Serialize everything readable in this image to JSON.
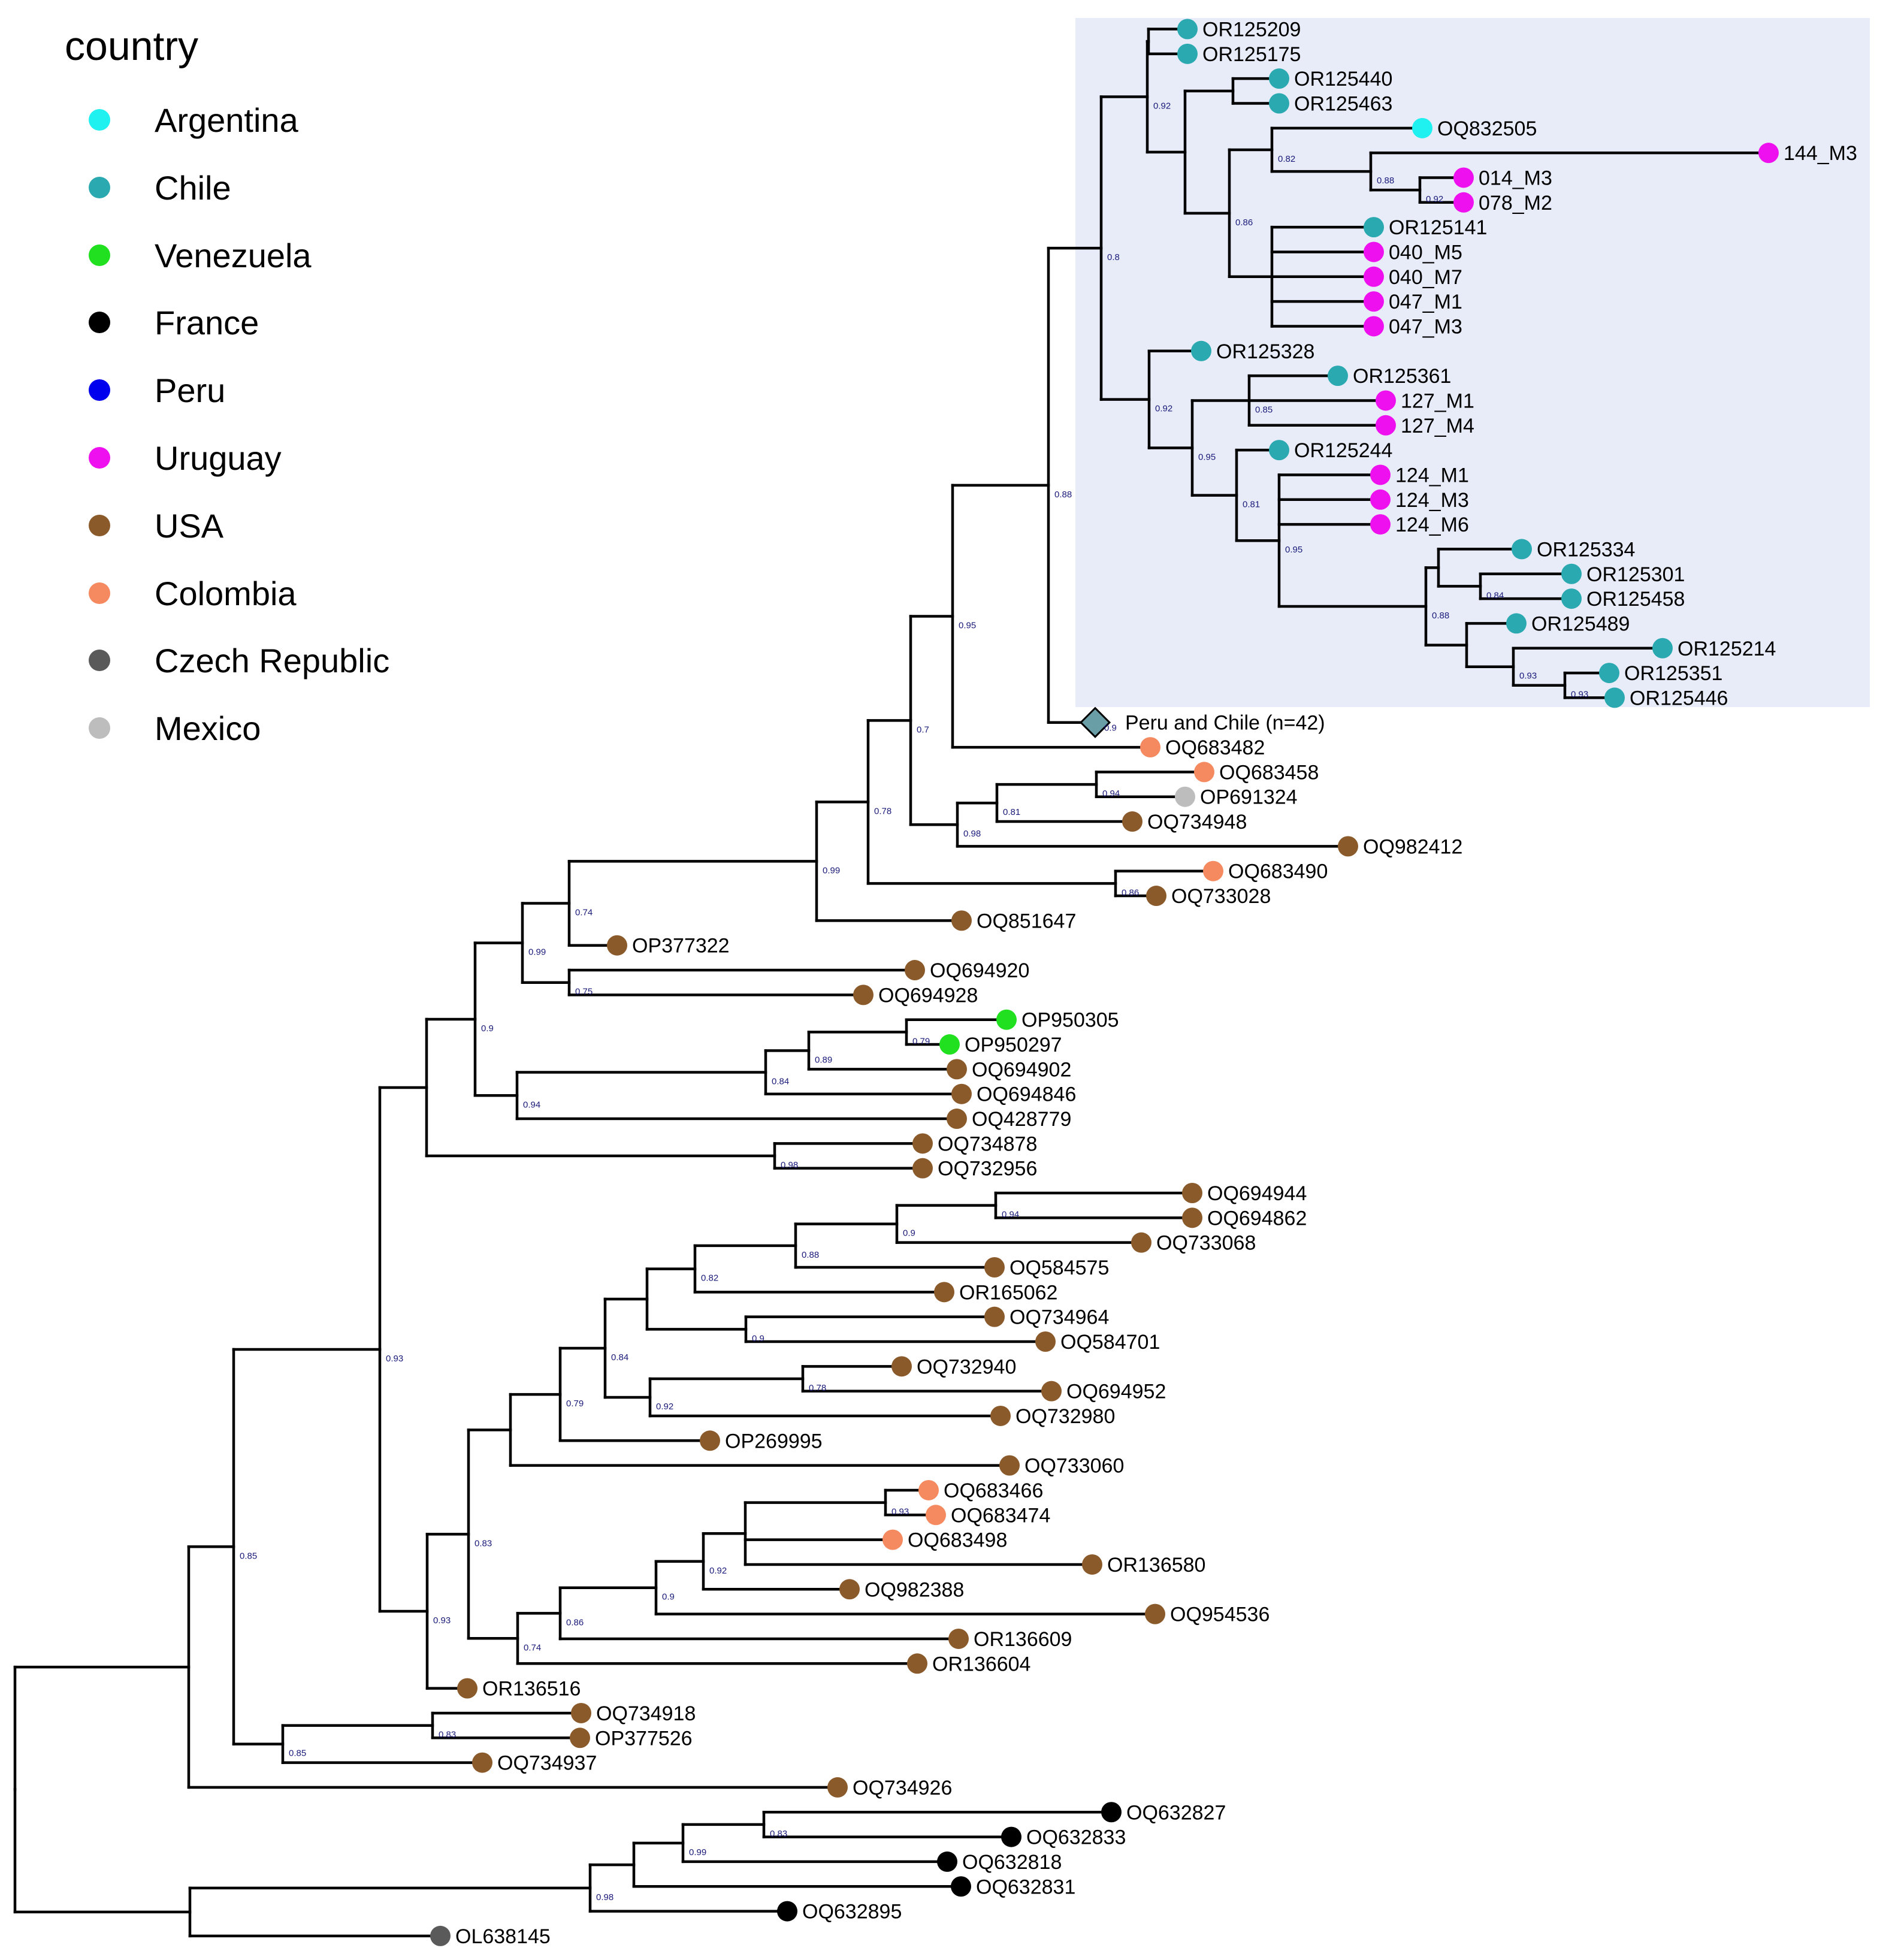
{
  "legend": {
    "title": "country",
    "items": [
      {
        "label": "Argentina",
        "color": "#1ff0f0"
      },
      {
        "label": "Chile",
        "color": "#2aa9b0"
      },
      {
        "label": "Venezuela",
        "color": "#20e020"
      },
      {
        "label": "France",
        "color": "#000000"
      },
      {
        "label": "Peru",
        "color": "#0000ee"
      },
      {
        "label": "Uruguay",
        "color": "#ee10ee"
      },
      {
        "label": "USA",
        "color": "#8b5a2b"
      },
      {
        "label": "Colombia",
        "color": "#f58a60"
      },
      {
        "label": "Czech Republic",
        "color": "#5a5a5a"
      },
      {
        "label": "Mexico",
        "color": "#bdbdbd"
      }
    ]
  },
  "highlight": {
    "color": "#e8ecf8"
  },
  "collapsed": {
    "label": "Peru and Chile (n=42)",
    "support": "0.9",
    "color": "#6a9ea6"
  },
  "tips": [
    {
      "label": "OR125209",
      "country": "Chile"
    },
    {
      "label": "OR125175",
      "country": "Chile"
    },
    {
      "label": "OR125440",
      "country": "Chile"
    },
    {
      "label": "OR125463",
      "country": "Chile"
    },
    {
      "label": "OQ832505",
      "country": "Argentina"
    },
    {
      "label": "144_M3",
      "country": "Uruguay"
    },
    {
      "label": "014_M3",
      "country": "Uruguay"
    },
    {
      "label": "078_M2",
      "country": "Uruguay"
    },
    {
      "label": "OR125141",
      "country": "Chile"
    },
    {
      "label": "040_M5",
      "country": "Uruguay"
    },
    {
      "label": "040_M7",
      "country": "Uruguay"
    },
    {
      "label": "047_M1",
      "country": "Uruguay"
    },
    {
      "label": "047_M3",
      "country": "Uruguay"
    },
    {
      "label": "OR125328",
      "country": "Chile"
    },
    {
      "label": "OR125361",
      "country": "Chile"
    },
    {
      "label": "127_M1",
      "country": "Uruguay"
    },
    {
      "label": "127_M4",
      "country": "Uruguay"
    },
    {
      "label": "OR125244",
      "country": "Chile"
    },
    {
      "label": "124_M1",
      "country": "Uruguay"
    },
    {
      "label": "124_M3",
      "country": "Uruguay"
    },
    {
      "label": "124_M6",
      "country": "Uruguay"
    },
    {
      "label": "OR125334",
      "country": "Chile"
    },
    {
      "label": "OR125301",
      "country": "Chile"
    },
    {
      "label": "OR125458",
      "country": "Chile"
    },
    {
      "label": "OR125489",
      "country": "Chile"
    },
    {
      "label": "OR125214",
      "country": "Chile"
    },
    {
      "label": "OR125351",
      "country": "Chile"
    },
    {
      "label": "OR125446",
      "country": "Chile"
    },
    {
      "label": "OQ683482",
      "country": "Colombia"
    },
    {
      "label": "OQ683458",
      "country": "Colombia"
    },
    {
      "label": "OP691324",
      "country": "Mexico"
    },
    {
      "label": "OQ734948",
      "country": "USA"
    },
    {
      "label": "OQ982412",
      "country": "USA"
    },
    {
      "label": "OQ683490",
      "country": "Colombia"
    },
    {
      "label": "OQ733028",
      "country": "USA"
    },
    {
      "label": "OQ851647",
      "country": "USA"
    },
    {
      "label": "OP377322",
      "country": "USA"
    },
    {
      "label": "OQ694920",
      "country": "USA"
    },
    {
      "label": "OQ694928",
      "country": "USA"
    },
    {
      "label": "OP950305",
      "country": "Venezuela"
    },
    {
      "label": "OP950297",
      "country": "Venezuela"
    },
    {
      "label": "OQ694902",
      "country": "USA"
    },
    {
      "label": "OQ694846",
      "country": "USA"
    },
    {
      "label": "OQ428779",
      "country": "USA"
    },
    {
      "label": "OQ734878",
      "country": "USA"
    },
    {
      "label": "OQ732956",
      "country": "USA"
    },
    {
      "label": "OQ694944",
      "country": "USA"
    },
    {
      "label": "OQ694862",
      "country": "USA"
    },
    {
      "label": "OQ733068",
      "country": "USA"
    },
    {
      "label": "OQ584575",
      "country": "USA"
    },
    {
      "label": "OR165062",
      "country": "USA"
    },
    {
      "label": "OQ734964",
      "country": "USA"
    },
    {
      "label": "OQ584701",
      "country": "USA"
    },
    {
      "label": "OQ732940",
      "country": "USA"
    },
    {
      "label": "OQ694952",
      "country": "USA"
    },
    {
      "label": "OQ732980",
      "country": "USA"
    },
    {
      "label": "OP269995",
      "country": "USA"
    },
    {
      "label": "OQ733060",
      "country": "USA"
    },
    {
      "label": "OQ683466",
      "country": "Colombia"
    },
    {
      "label": "OQ683474",
      "country": "Colombia"
    },
    {
      "label": "OQ683498",
      "country": "Colombia"
    },
    {
      "label": "OR136580",
      "country": "USA"
    },
    {
      "label": "OQ982388",
      "country": "USA"
    },
    {
      "label": "OQ954536",
      "country": "USA"
    },
    {
      "label": "OR136609",
      "country": "USA"
    },
    {
      "label": "OR136604",
      "country": "USA"
    },
    {
      "label": "OR136516",
      "country": "USA"
    },
    {
      "label": "OQ734918",
      "country": "USA"
    },
    {
      "label": "OP377526",
      "country": "USA"
    },
    {
      "label": "OQ734937",
      "country": "USA"
    },
    {
      "label": "OQ734926",
      "country": "USA"
    },
    {
      "label": "OQ632827",
      "country": "France"
    },
    {
      "label": "OQ632833",
      "country": "France"
    },
    {
      "label": "OQ632818",
      "country": "France"
    },
    {
      "label": "OQ632831",
      "country": "France"
    },
    {
      "label": "OQ632895",
      "country": "France"
    },
    {
      "label": "OL638145",
      "country": "Czech Republic"
    }
  ],
  "support_values": [
    "0.92",
    "0.88",
    "0.82",
    "0.86",
    "0.92",
    "0.85",
    "0.84",
    "0.93",
    "0.93",
    "0.88",
    "0.95",
    "0.81",
    "0.95",
    "0.92",
    "0.8",
    "0.88",
    "0.95",
    "0.94",
    "0.81",
    "0.98",
    "0.7",
    "0.86",
    "0.78",
    "0.99",
    "0.74",
    "0.75",
    "0.99",
    "0.79",
    "0.89",
    "0.84",
    "0.94",
    "0.9",
    "0.98",
    "0.94",
    "0.9",
    "0.88",
    "0.82",
    "0.9",
    "0.78",
    "0.92",
    "0.84",
    "0.79",
    "0.93",
    "0.92",
    "0.9",
    "0.86",
    "0.74",
    "0.83",
    "0.93",
    "0.93",
    "0.83",
    "0.85",
    "0.85",
    "0.83",
    "0.99",
    "0.98"
  ]
}
